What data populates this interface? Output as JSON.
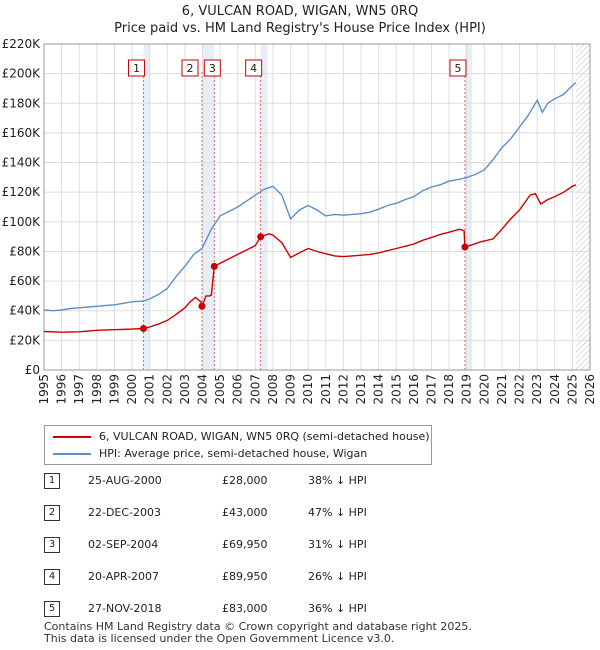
{
  "title": "6, VULCAN ROAD, WIGAN, WN5 0RQ",
  "subtitle": "Price paid vs. HM Land Registry's House Price Index (HPI)",
  "colors": {
    "property": "#cc0000",
    "hpi": "#5b8fc9",
    "shade": "#e8eef8",
    "vline": "#dd6666"
  },
  "chart_data": {
    "type": "line",
    "title": "6, VULCAN ROAD, WIGAN, WN5 0RQ",
    "subtitle": "Price paid vs. HM Land Registry's House Price Index (HPI)",
    "xlim": [
      1995,
      2026
    ],
    "ylim": [
      0,
      220000
    ],
    "x_ticks": [
      1995,
      1996,
      1997,
      1998,
      1999,
      2000,
      2001,
      2002,
      2003,
      2004,
      2005,
      2006,
      2007,
      2008,
      2009,
      2010,
      2011,
      2012,
      2013,
      2014,
      2015,
      2016,
      2017,
      2018,
      2019,
      2020,
      2021,
      2022,
      2023,
      2024,
      2025,
      2026
    ],
    "y_ticks": [
      {
        "value": 0,
        "label": "£0"
      },
      {
        "value": 20000,
        "label": "£20K"
      },
      {
        "value": 40000,
        "label": "£40K"
      },
      {
        "value": 60000,
        "label": "£60K"
      },
      {
        "value": 80000,
        "label": "£80K"
      },
      {
        "value": 100000,
        "label": "£100K"
      },
      {
        "value": 120000,
        "label": "£120K"
      },
      {
        "value": 140000,
        "label": "£140K"
      },
      {
        "value": 160000,
        "label": "£160K"
      },
      {
        "value": 180000,
        "label": "£180K"
      },
      {
        "value": 200000,
        "label": "£200K"
      },
      {
        "value": 220000,
        "label": "£220K"
      }
    ],
    "shaded_ranges": [
      [
        2000.65,
        2001.0
      ],
      [
        2003.97,
        2004.67
      ],
      [
        2007.3,
        2007.7
      ],
      [
        2018.9,
        2019.3
      ]
    ],
    "future_hatch_from": 2025.2,
    "series": [
      {
        "name": "6, VULCAN ROAD, WIGAN, WN5 0RQ (semi-detached house)",
        "color": "#cc0000",
        "points": [
          [
            1995.0,
            26000
          ],
          [
            1996.0,
            25500
          ],
          [
            1997.0,
            25800
          ],
          [
            1998.0,
            26800
          ],
          [
            1999.0,
            27200
          ],
          [
            2000.0,
            27600
          ],
          [
            2000.65,
            28000
          ],
          [
            2001.0,
            29000
          ],
          [
            2001.5,
            31000
          ],
          [
            2002.0,
            33500
          ],
          [
            2002.5,
            37500
          ],
          [
            2003.0,
            42000
          ],
          [
            2003.3,
            46000
          ],
          [
            2003.6,
            49000
          ],
          [
            2003.9,
            46000
          ],
          [
            2003.97,
            43000
          ],
          [
            2004.2,
            50000
          ],
          [
            2004.4,
            50000
          ],
          [
            2004.5,
            50500
          ],
          [
            2004.67,
            69950
          ],
          [
            2005.0,
            72000
          ],
          [
            2005.5,
            75000
          ],
          [
            2006.0,
            78000
          ],
          [
            2006.5,
            81000
          ],
          [
            2007.0,
            84000
          ],
          [
            2007.3,
            89950
          ],
          [
            2007.8,
            92000
          ],
          [
            2008.0,
            91000
          ],
          [
            2008.5,
            86000
          ],
          [
            2009.0,
            76000
          ],
          [
            2009.5,
            79000
          ],
          [
            2010.0,
            82000
          ],
          [
            2010.5,
            80000
          ],
          [
            2011.0,
            78500
          ],
          [
            2011.5,
            77000
          ],
          [
            2012.0,
            76500
          ],
          [
            2012.5,
            77000
          ],
          [
            2013.0,
            77500
          ],
          [
            2013.5,
            78000
          ],
          [
            2014.0,
            79000
          ],
          [
            2014.5,
            80500
          ],
          [
            2015.0,
            82000
          ],
          [
            2015.5,
            83500
          ],
          [
            2016.0,
            85000
          ],
          [
            2016.5,
            87500
          ],
          [
            2017.0,
            89500
          ],
          [
            2017.5,
            91500
          ],
          [
            2018.0,
            93000
          ],
          [
            2018.6,
            95000
          ],
          [
            2018.85,
            94000
          ],
          [
            2018.9,
            83000
          ],
          [
            2019.3,
            84500
          ],
          [
            2019.8,
            86500
          ],
          [
            2020.5,
            88500
          ],
          [
            2021.0,
            95000
          ],
          [
            2021.5,
            102000
          ],
          [
            2022.0,
            108000
          ],
          [
            2022.6,
            118000
          ],
          [
            2022.9,
            119000
          ],
          [
            2023.2,
            112000
          ],
          [
            2023.6,
            115000
          ],
          [
            2024.0,
            117000
          ],
          [
            2024.5,
            120000
          ],
          [
            2025.0,
            124000
          ],
          [
            2025.2,
            125000
          ]
        ]
      },
      {
        "name": "HPI: Average price, semi-detached house, Wigan",
        "color": "#5b8fc9",
        "points": [
          [
            1995.0,
            40500
          ],
          [
            1995.5,
            40000
          ],
          [
            1996.0,
            40500
          ],
          [
            1996.5,
            41500
          ],
          [
            1997.0,
            42000
          ],
          [
            1997.5,
            42500
          ],
          [
            1998.0,
            43000
          ],
          [
            1998.5,
            43500
          ],
          [
            1999.0,
            44000
          ],
          [
            1999.5,
            45000
          ],
          [
            2000.0,
            46000
          ],
          [
            2000.65,
            46500
          ],
          [
            2001.0,
            48000
          ],
          [
            2001.5,
            51000
          ],
          [
            2002.0,
            55000
          ],
          [
            2002.5,
            63000
          ],
          [
            2003.0,
            70000
          ],
          [
            2003.5,
            78000
          ],
          [
            2003.97,
            82000
          ],
          [
            2004.5,
            95000
          ],
          [
            2005.0,
            104000
          ],
          [
            2005.5,
            107000
          ],
          [
            2006.0,
            110000
          ],
          [
            2006.5,
            114000
          ],
          [
            2007.0,
            118000
          ],
          [
            2007.5,
            122000
          ],
          [
            2008.0,
            124000
          ],
          [
            2008.5,
            118000
          ],
          [
            2009.0,
            102000
          ],
          [
            2009.5,
            108000
          ],
          [
            2010.0,
            111000
          ],
          [
            2010.5,
            108000
          ],
          [
            2011.0,
            104000
          ],
          [
            2011.5,
            105000
          ],
          [
            2012.0,
            104500
          ],
          [
            2012.5,
            105000
          ],
          [
            2013.0,
            105500
          ],
          [
            2013.5,
            106500
          ],
          [
            2014.0,
            108500
          ],
          [
            2014.5,
            111000
          ],
          [
            2015.0,
            112500
          ],
          [
            2015.5,
            115000
          ],
          [
            2016.0,
            117000
          ],
          [
            2016.5,
            121000
          ],
          [
            2017.0,
            123500
          ],
          [
            2017.5,
            125000
          ],
          [
            2018.0,
            127500
          ],
          [
            2018.5,
            128500
          ],
          [
            2018.9,
            129500
          ],
          [
            2019.5,
            132000
          ],
          [
            2020.0,
            135000
          ],
          [
            2020.5,
            142000
          ],
          [
            2021.0,
            150000
          ],
          [
            2021.5,
            156000
          ],
          [
            2022.0,
            164000
          ],
          [
            2022.5,
            172000
          ],
          [
            2023.0,
            182000
          ],
          [
            2023.3,
            174000
          ],
          [
            2023.6,
            180000
          ],
          [
            2024.0,
            183000
          ],
          [
            2024.5,
            186000
          ],
          [
            2025.0,
            192000
          ],
          [
            2025.2,
            194000
          ]
        ]
      }
    ],
    "sales": [
      {
        "num": "1",
        "x": 2000.65,
        "value": 28000
      },
      {
        "num": "2",
        "x": 2003.97,
        "value": 43000
      },
      {
        "num": "3",
        "x": 2004.67,
        "value": 69950
      },
      {
        "num": "4",
        "x": 2007.3,
        "value": 89950
      },
      {
        "num": "5",
        "x": 2018.9,
        "value": 83000
      }
    ]
  },
  "legend": {
    "property_label": "6, VULCAN ROAD, WIGAN, WN5 0RQ (semi-detached house)",
    "hpi_label": "HPI: Average price, semi-detached house, Wigan"
  },
  "sales_table": [
    {
      "num": "1",
      "date": "25-AUG-2000",
      "price": "£28,000",
      "pct": "38% ↓ HPI"
    },
    {
      "num": "2",
      "date": "22-DEC-2003",
      "price": "£43,000",
      "pct": "47% ↓ HPI"
    },
    {
      "num": "3",
      "date": "02-SEP-2004",
      "price": "£69,950",
      "pct": "31% ↓ HPI"
    },
    {
      "num": "4",
      "date": "20-APR-2007",
      "price": "£89,950",
      "pct": "26% ↓ HPI"
    },
    {
      "num": "5",
      "date": "27-NOV-2018",
      "price": "£83,000",
      "pct": "36% ↓ HPI"
    }
  ],
  "footer": {
    "line1": "Contains HM Land Registry data © Crown copyright and database right 2025.",
    "line2": "This data is licensed under the Open Government Licence v3.0."
  }
}
